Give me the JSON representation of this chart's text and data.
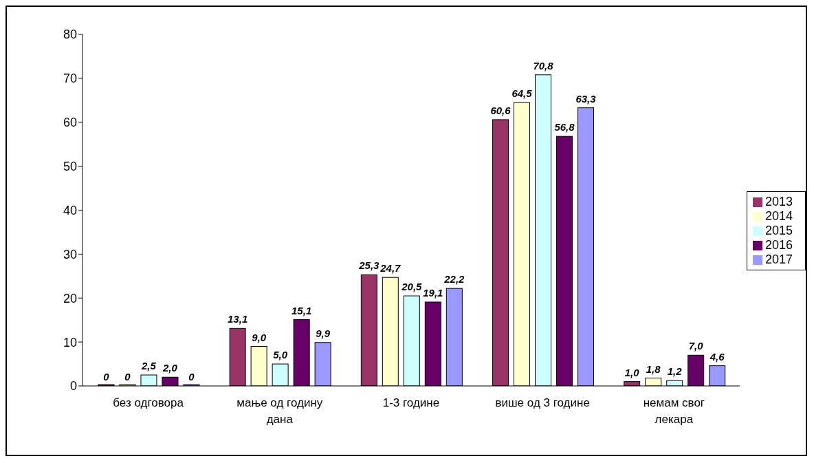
{
  "chart_data": {
    "type": "bar",
    "categories": [
      "без одговора",
      "мање од годину дана",
      "1-3 године",
      "више од 3 године",
      "немам свог лекара"
    ],
    "series": [
      {
        "name": "2013",
        "color": "#993366",
        "values": [
          0,
          13.1,
          25.3,
          60.6,
          1.0
        ],
        "value_labels": [
          "0",
          "13,1",
          "25,3",
          "60,6",
          "1,0"
        ]
      },
      {
        "name": "2014",
        "color": "#ffffcc",
        "values": [
          0,
          9.0,
          24.7,
          64.5,
          1.8
        ],
        "value_labels": [
          "0",
          "9,0",
          "24,7",
          "64,5",
          "1,8"
        ]
      },
      {
        "name": "2015",
        "color": "#ccffff",
        "values": [
          2.5,
          5.0,
          20.5,
          70.8,
          1.2
        ],
        "value_labels": [
          "2,5",
          "5,0",
          "20,5",
          "70,8",
          "1,2"
        ]
      },
      {
        "name": "2016",
        "color": "#660066",
        "values": [
          2.0,
          15.1,
          19.1,
          56.8,
          7.0
        ],
        "value_labels": [
          "2,0",
          "15,1",
          "19,1",
          "56,8",
          "7,0"
        ]
      },
      {
        "name": "2017",
        "color": "#9999ff",
        "values": [
          0,
          9.9,
          22.2,
          63.3,
          4.6
        ],
        "value_labels": [
          "0",
          "9,9",
          "22,2",
          "63,3",
          "4,6"
        ]
      }
    ],
    "ylim": [
      0,
      80
    ],
    "yticks": [
      0,
      10,
      20,
      30,
      40,
      50,
      60,
      70,
      80
    ],
    "grid": false,
    "legend": "right"
  }
}
